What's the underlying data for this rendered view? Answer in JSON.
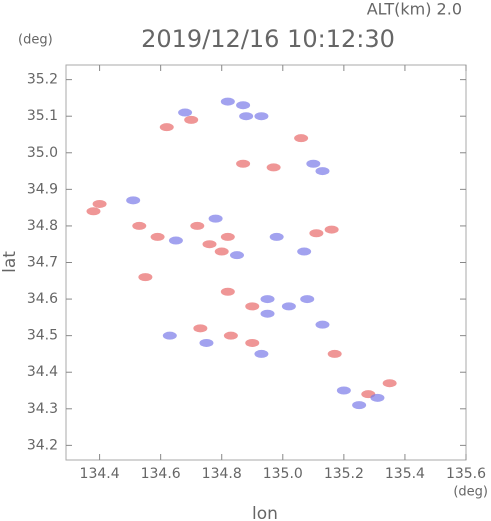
{
  "chart_data": {
    "type": "scatter",
    "title": "2019/12/16 10:12:30",
    "subtitle": "ALT(km) 2.0",
    "y_unit": "(deg)",
    "x_unit": "(deg)",
    "x_label": "lon",
    "y_label": "lat",
    "xlim": [
      134.29,
      135.6
    ],
    "ylim": [
      34.16,
      35.24
    ],
    "xticks": [
      134.4,
      134.6,
      134.8,
      {
        "value": 135,
        "label": "135.0"
      },
      135.2,
      135.4,
      135.6
    ],
    "yticks": [
      {
        "value": 34.2,
        "label": "34.2"
      },
      34.3,
      34.4,
      34.5,
      34.6,
      34.7,
      34.8,
      34.9,
      {
        "value": 35,
        "label": "35.0"
      },
      35.1,
      35.2
    ],
    "series": [
      {
        "color": "#e86a6a",
        "x": [
          134.62,
          134.7,
          134.87,
          134.97,
          135.06,
          134.4,
          134.53,
          134.59,
          134.72,
          134.76,
          134.82,
          134.8,
          135.11,
          135.16,
          134.55,
          134.82,
          134.9,
          134.73,
          134.83,
          134.9,
          135.17,
          135.35,
          135.28,
          134.38
        ],
        "y": [
          35.07,
          35.09,
          34.97,
          34.96,
          35.04,
          34.86,
          34.8,
          34.77,
          34.8,
          34.75,
          34.77,
          34.73,
          34.78,
          34.79,
          34.66,
          34.62,
          34.58,
          34.52,
          34.5,
          34.48,
          34.45,
          34.37,
          34.34,
          34.84
        ]
      },
      {
        "color": "#7a7ae8",
        "x": [
          134.68,
          134.82,
          134.87,
          134.93,
          134.88,
          135.1,
          135.13,
          134.51,
          134.78,
          134.65,
          134.85,
          134.98,
          135.07,
          135.08,
          134.95,
          135.02,
          134.63,
          134.75,
          134.93,
          135.25,
          135.31,
          135.2,
          134.95,
          135.13
        ],
        "y": [
          35.11,
          35.14,
          35.13,
          35.1,
          35.1,
          34.97,
          34.95,
          34.87,
          34.82,
          34.76,
          34.72,
          34.77,
          34.73,
          34.6,
          34.6,
          34.58,
          34.5,
          34.48,
          34.45,
          34.31,
          34.33,
          34.35,
          34.56,
          34.53
        ]
      }
    ]
  }
}
